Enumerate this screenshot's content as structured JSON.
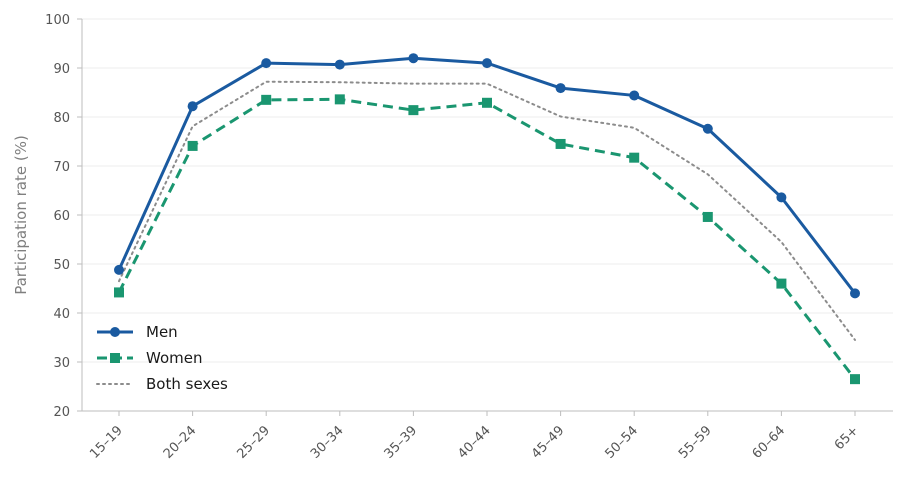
{
  "chart_data": {
    "type": "line",
    "title": "",
    "xlabel": "",
    "ylabel": "Participation rate (%)",
    "categories": [
      "15–19",
      "20–24",
      "25–29",
      "30–34",
      "35–39",
      "40–44",
      "45–49",
      "50–54",
      "55–59",
      "60–64",
      "65+"
    ],
    "ylim": [
      20,
      100
    ],
    "yticks": [
      20,
      30,
      40,
      50,
      60,
      70,
      80,
      90,
      100
    ],
    "grid": "horizontal",
    "legend_position": "bottom-left",
    "series": [
      {
        "name": "Men",
        "values": [
          48.8,
          82.2,
          91.0,
          90.7,
          92.0,
          91.0,
          85.9,
          84.4,
          77.6,
          63.6,
          44.0
        ],
        "color": "#1a5aa0",
        "style": "solid",
        "marker": "circle"
      },
      {
        "name": "Women",
        "values": [
          44.2,
          74.1,
          83.5,
          83.6,
          81.4,
          82.9,
          74.5,
          71.7,
          59.6,
          46.0,
          26.5
        ],
        "color": "#1a9670",
        "style": "dashed",
        "marker": "square"
      },
      {
        "name": "Both sexes",
        "values": [
          46.5,
          78.1,
          87.2,
          87.1,
          86.8,
          86.8,
          80.1,
          77.8,
          68.3,
          54.5,
          34.5
        ],
        "color": "#8c8c8c",
        "style": "dotted",
        "marker": "none"
      }
    ]
  }
}
